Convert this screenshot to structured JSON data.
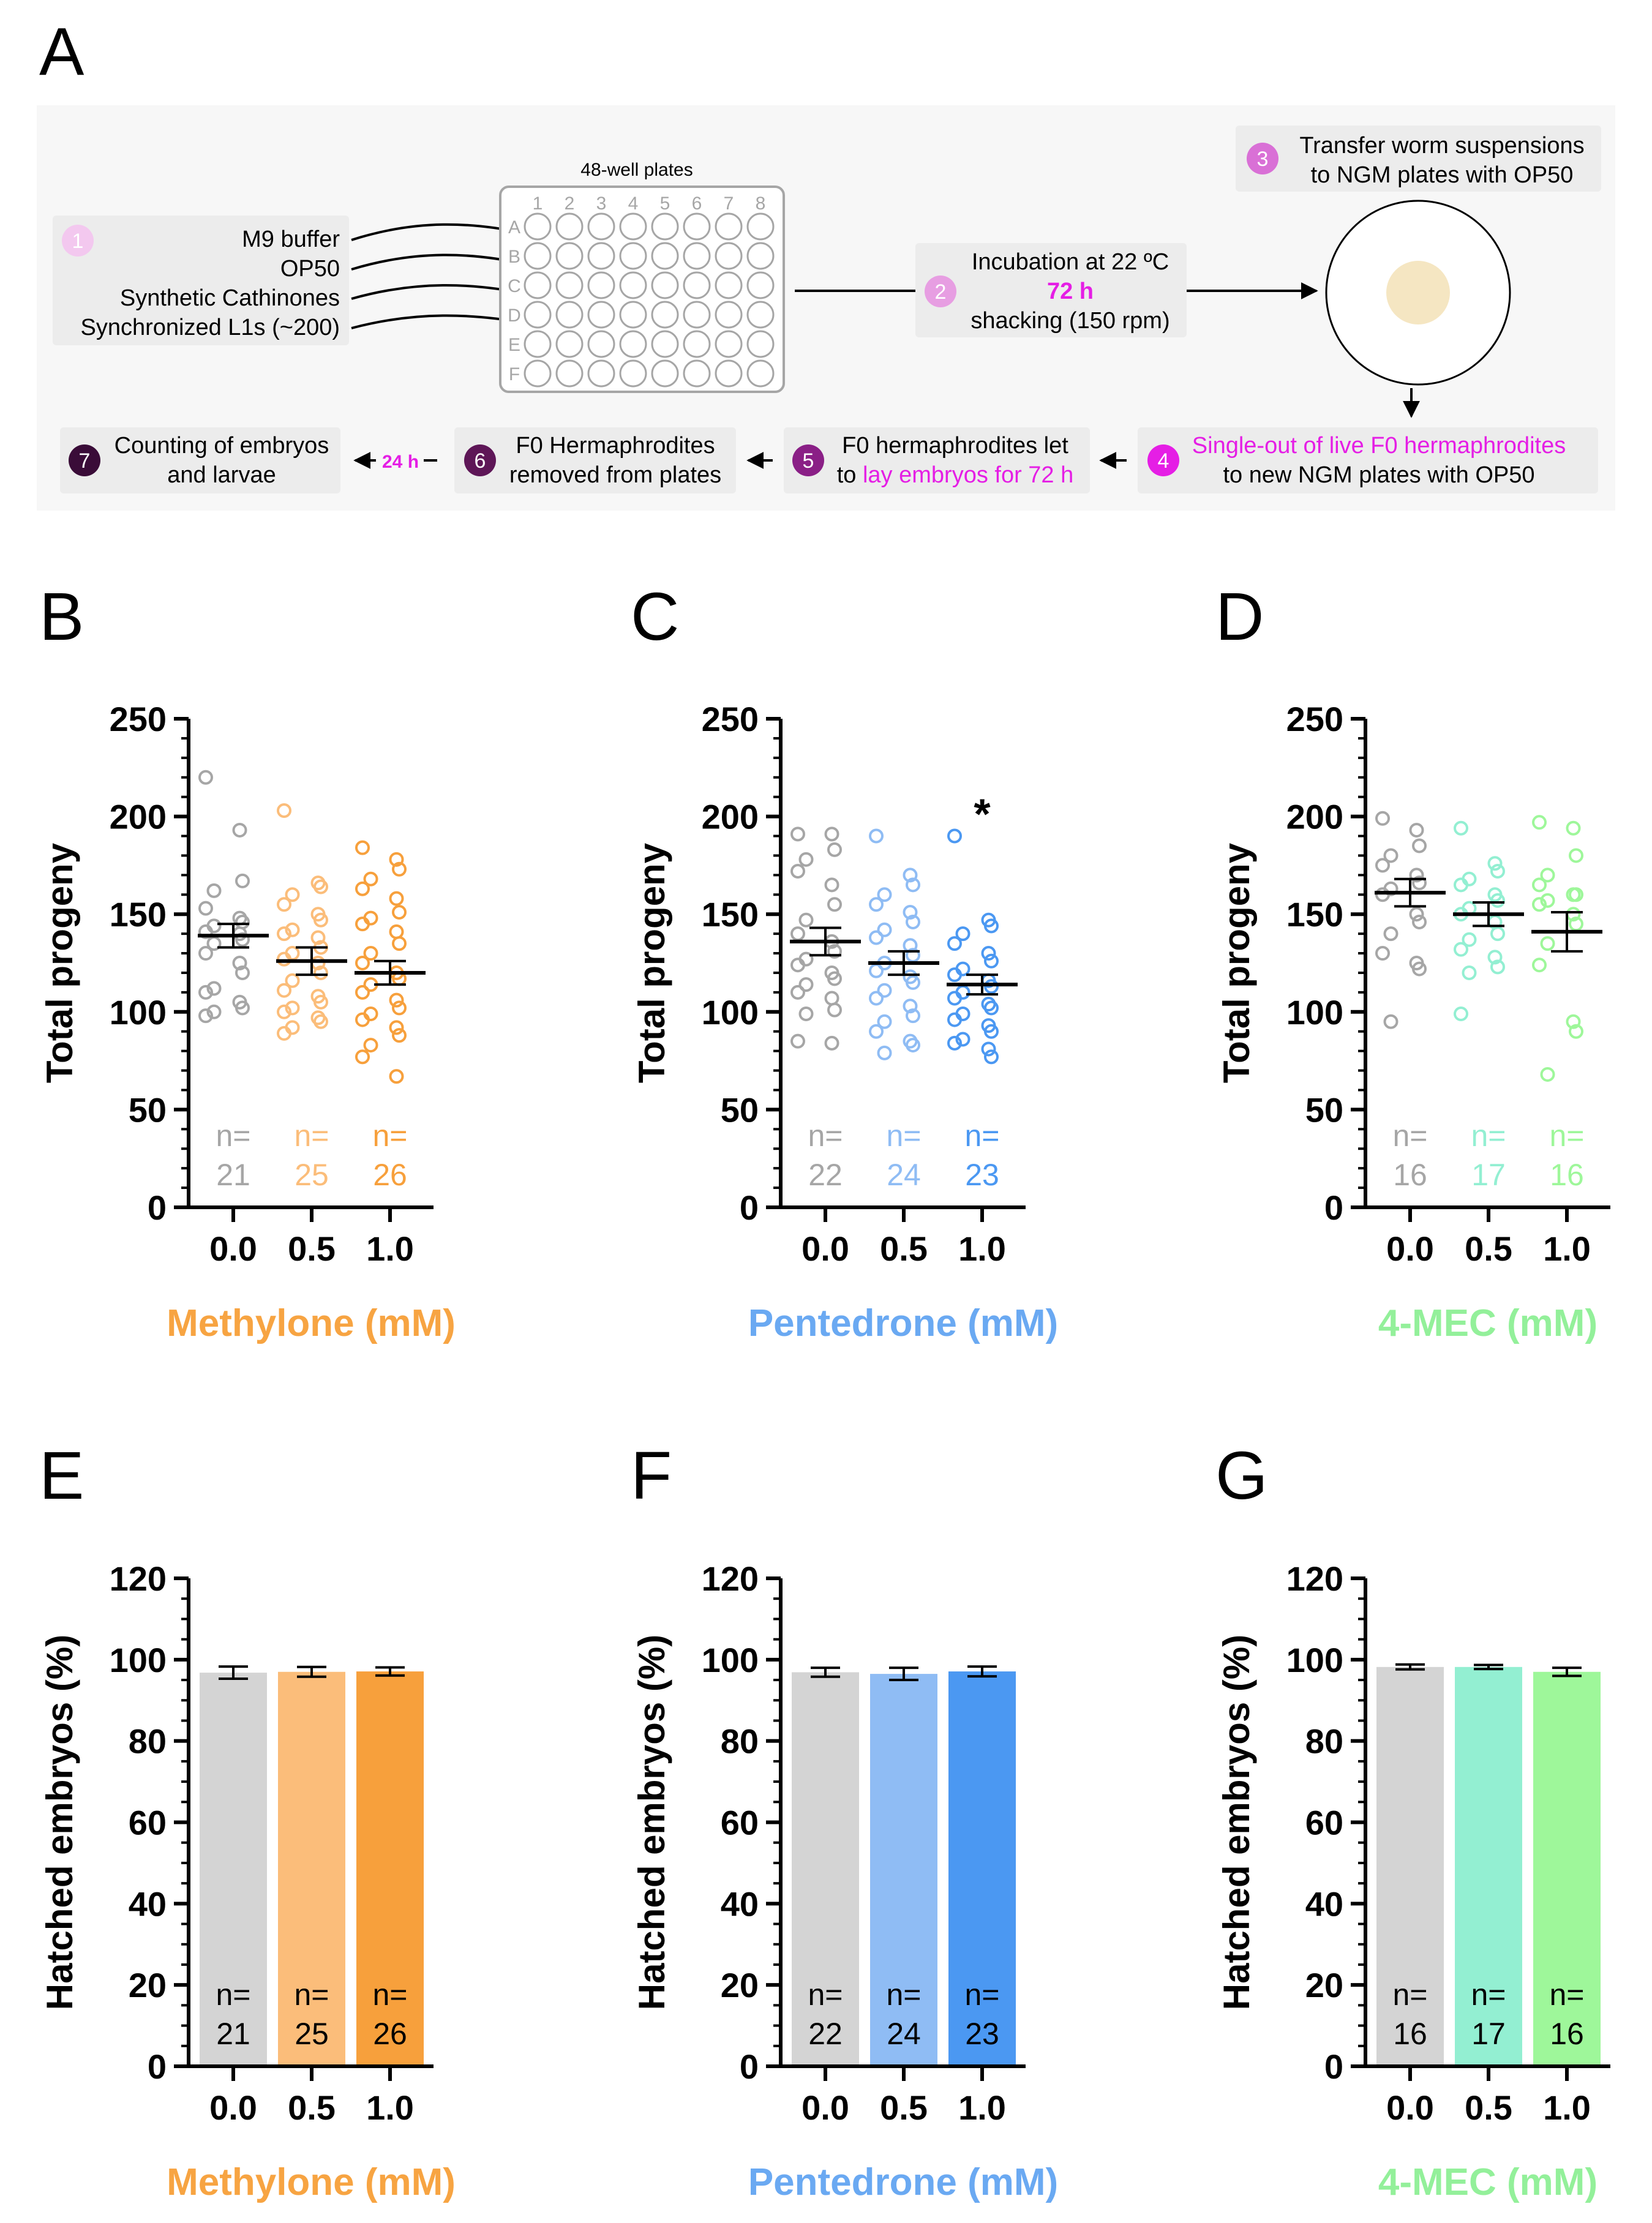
{
  "panel_labels": {
    "A": "A",
    "B": "B",
    "C": "C",
    "D": "D",
    "E": "E",
    "F": "F",
    "G": "G"
  },
  "colors": {
    "control": "#a6a6a6",
    "methylone_light": "#fbbd7a",
    "methylone_dark": "#f7a03c",
    "pentedrone_light": "#8fbcf4",
    "pentedrone_dark": "#4b98f2",
    "mec_light": "#93efd2",
    "mec_dark": "#9ef79a",
    "methylone_title": "#f7a442",
    "pentedrone_title": "#6aa9f2",
    "mec_title": "#93f09a",
    "magenta": "#e51ee5",
    "step1": "#f3c8ef",
    "step2": "#e79ee2",
    "step3": "#d970d6",
    "step4": "#e51ee5",
    "step5": "#8a1f86",
    "step6": "#5e1657",
    "step7": "#3a0c38"
  },
  "schematic": {
    "plate_title": "48-well plates",
    "plate_cols": [
      "1",
      "2",
      "3",
      "4",
      "5",
      "6",
      "7",
      "8"
    ],
    "plate_rows": [
      "A",
      "B",
      "C",
      "D",
      "E",
      "F"
    ],
    "step1": {
      "num": "1",
      "lines": [
        "M9 buffer",
        "OP50",
        "Synthetic Cathinones",
        "Synchronized L1s (~200)"
      ]
    },
    "step2": {
      "num": "2",
      "line1": "Incubation at 22 ºC",
      "line2": "72 h",
      "line3": "shacking (150 rpm)"
    },
    "step3": {
      "num": "3",
      "line1": "Transfer worm suspensions",
      "line2": "to NGM plates with OP50"
    },
    "step4": {
      "num": "4",
      "line1": "Single-out of live F0 hermaphrodites",
      "line2": "to new NGM plates with OP50"
    },
    "step5": {
      "num": "5",
      "line1": "F0 hermaphrodites let",
      "line2a": "to ",
      "line2b": "lay embryos for 72 h"
    },
    "step6": {
      "num": "6",
      "line1": "F0 Hermaphrodites",
      "line2": "removed from plates"
    },
    "step7": {
      "num": "7",
      "line1": "Counting of embryos",
      "line2": "and larvae"
    },
    "arrow_label": "24 h"
  },
  "chart_data": [
    {
      "panel": "B",
      "type": "scatter",
      "ylabel": "Total progeny",
      "xlabel": "Methylone (mM)",
      "ylim": [
        0,
        250
      ],
      "yticks": [
        "0",
        "50",
        "100",
        "150",
        "200",
        "250"
      ],
      "categories": [
        "0.0",
        "0.5",
        "1.0"
      ],
      "n_label": "n=",
      "n": [
        "21",
        "25",
        "26"
      ],
      "means": [
        139,
        126,
        120
      ],
      "sem": [
        6,
        7,
        6
      ],
      "annotation": "",
      "points": [
        [
          220,
          193,
          167,
          162,
          153,
          148,
          146,
          144,
          141,
          140,
          137,
          135,
          130,
          125,
          120,
          112,
          110,
          105,
          102,
          100,
          98
        ],
        [
          203,
          166,
          164,
          160,
          155,
          150,
          147,
          142,
          140,
          138,
          133,
          130,
          127,
          125,
          120,
          116,
          111,
          108,
          105,
          102,
          100,
          97,
          95,
          92,
          89
        ],
        [
          184,
          178,
          173,
          168,
          163,
          158,
          151,
          148,
          145,
          141,
          135,
          130,
          125,
          120,
          117,
          114,
          110,
          106,
          102,
          99,
          96,
          92,
          88,
          83,
          77,
          67
        ]
      ]
    },
    {
      "panel": "C",
      "type": "scatter",
      "ylabel": "Total progeny",
      "xlabel": "Pentedrone (mM)",
      "ylim": [
        0,
        250
      ],
      "yticks": [
        "0",
        "50",
        "100",
        "150",
        "200",
        "250"
      ],
      "categories": [
        "0.0",
        "0.5",
        "1.0"
      ],
      "n_label": "n=",
      "n": [
        "22",
        "24",
        "23"
      ],
      "means": [
        136,
        125,
        114
      ],
      "sem": [
        7,
        6,
        5
      ],
      "annotation": "*",
      "points": [
        [
          191,
          191,
          183,
          178,
          172,
          165,
          155,
          147,
          140,
          136,
          131,
          127,
          124,
          120,
          117,
          114,
          110,
          107,
          101,
          99,
          85,
          84
        ],
        [
          190,
          170,
          165,
          160,
          155,
          151,
          146,
          142,
          138,
          134,
          129,
          125,
          121,
          118,
          115,
          111,
          107,
          103,
          98,
          95,
          90,
          85,
          83,
          79
        ],
        [
          190,
          147,
          144,
          140,
          135,
          130,
          126,
          122,
          119,
          116,
          113,
          110,
          107,
          104,
          102,
          99,
          96,
          93,
          90,
          86,
          84,
          81,
          77
        ]
      ]
    },
    {
      "panel": "D",
      "type": "scatter",
      "ylabel": "Total progeny",
      "xlabel": "4-MEC (mM)",
      "ylim": [
        0,
        250
      ],
      "yticks": [
        "0",
        "50",
        "100",
        "150",
        "200",
        "250"
      ],
      "categories": [
        "0.0",
        "0.5",
        "1.0"
      ],
      "n_label": "n=",
      "n": [
        "16",
        "17",
        "16"
      ],
      "means": [
        161,
        150,
        141
      ],
      "sem": [
        7,
        6,
        10
      ],
      "annotation": "",
      "points": [
        [
          199,
          193,
          185,
          180,
          175,
          170,
          166,
          163,
          160,
          150,
          146,
          140,
          130,
          125,
          122,
          95
        ],
        [
          194,
          176,
          172,
          168,
          165,
          160,
          157,
          153,
          150,
          146,
          140,
          137,
          132,
          128,
          123,
          120,
          99
        ],
        [
          197,
          194,
          180,
          170,
          165,
          160,
          160,
          157,
          155,
          150,
          145,
          135,
          124,
          95,
          90,
          68
        ]
      ]
    },
    {
      "panel": "E",
      "type": "bar",
      "ylabel": "Hatched embryos (%)",
      "xlabel": "Methylone (mM)",
      "ylim": [
        0,
        120
      ],
      "yticks": [
        "0",
        "20",
        "40",
        "60",
        "80",
        "100",
        "120"
      ],
      "categories": [
        "0.0",
        "0.5",
        "1.0"
      ],
      "n_label": "n=",
      "n": [
        "21",
        "25",
        "26"
      ],
      "values": [
        96.8,
        97.0,
        97.1
      ],
      "sem": [
        1.5,
        1.2,
        1.0
      ]
    },
    {
      "panel": "F",
      "type": "bar",
      "ylabel": "Hatched embryos (%)",
      "xlabel": "Pentedrone (mM)",
      "ylim": [
        0,
        120
      ],
      "yticks": [
        "0",
        "20",
        "40",
        "60",
        "80",
        "100",
        "120"
      ],
      "categories": [
        "0.0",
        "0.5",
        "1.0"
      ],
      "n_label": "n=",
      "n": [
        "22",
        "24",
        "23"
      ],
      "values": [
        96.9,
        96.5,
        97.1
      ],
      "sem": [
        1.1,
        1.5,
        1.2
      ]
    },
    {
      "panel": "G",
      "type": "bar",
      "ylabel": "Hatched embryos (%)",
      "xlabel": "4-MEC (mM)",
      "ylim": [
        0,
        120
      ],
      "yticks": [
        "0",
        "20",
        "40",
        "60",
        "80",
        "100",
        "120"
      ],
      "categories": [
        "0.0",
        "0.5",
        "1.0"
      ],
      "n_label": "n=",
      "n": [
        "16",
        "17",
        "16"
      ],
      "values": [
        98.2,
        98.2,
        97.0
      ],
      "sem": [
        0.6,
        0.5,
        1.0
      ]
    }
  ]
}
